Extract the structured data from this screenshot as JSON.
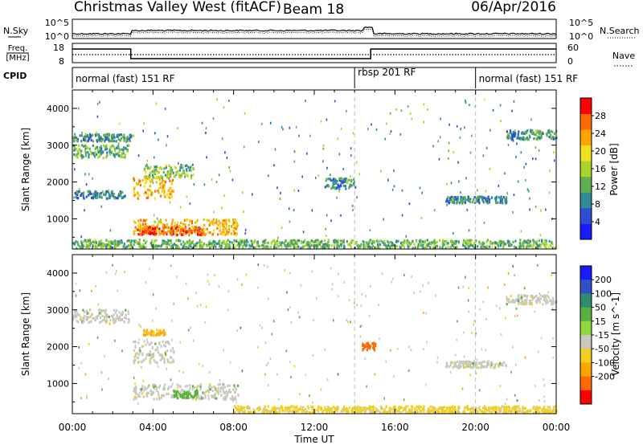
{
  "header": {
    "site": "Christmas Valley West (fitACF)",
    "beam": "Beam 18",
    "date": "06/Apr/2016"
  },
  "side_labels": {
    "nsky": "N.Sky",
    "nsearch": "N.Search",
    "freq_line1": "Freq.",
    "freq_line2": "[MHz]",
    "nave": "Nave",
    "cpid": "CPID"
  },
  "noise_panel": {
    "left_ticks": [
      "10^5",
      "10^0"
    ],
    "right_ticks": [
      "10^5",
      "10^0"
    ]
  },
  "freq_panel": {
    "left_ticks": [
      "18",
      "8"
    ],
    "right_ticks": [
      "60",
      "0"
    ],
    "step_hours": [
      2.9,
      14.8
    ],
    "freq_levels": [
      "high",
      "low",
      "high"
    ],
    "nave_level": "mid"
  },
  "cpid_panel": {
    "segments": [
      {
        "label": "normal (fast) 151 RF",
        "start_hour": 0
      },
      {
        "label": "rbsp 201 RF",
        "start_hour": 14
      },
      {
        "label": "normal (fast) 151 RF",
        "start_hour": 20
      }
    ]
  },
  "x_axis": {
    "label": "Time UT",
    "ticks": [
      "00:00",
      "04:00",
      "08:00",
      "12:00",
      "16:00",
      "20:00",
      "00:00"
    ],
    "range_hours": [
      0,
      24
    ],
    "dashed_hours": [
      14,
      20
    ]
  },
  "chart_data": [
    {
      "type": "heatmap",
      "name": "power",
      "ylabel": "Slant Range [km]",
      "ylim": [
        180,
        4500
      ],
      "yticks": [
        1000,
        2000,
        3000,
        4000
      ],
      "colorbar": {
        "label": "Power [dB]",
        "ticks": [
          "4",
          "8",
          "12",
          "16",
          "20",
          "24",
          "28"
        ],
        "tick_values": [
          4,
          8,
          12,
          16,
          20,
          24,
          28
        ],
        "range": [
          0,
          32
        ],
        "colors": [
          "#1a1aff",
          "#2c4fd6",
          "#2f8c96",
          "#5fb050",
          "#a9d42c",
          "#f0e020",
          "#ffa500",
          "#ff6a00",
          "#ff0000"
        ]
      },
      "features": [
        {
          "t": [
            0.0,
            2.8
          ],
          "r": [
            2650,
            3000
          ],
          "level": 12
        },
        {
          "t": [
            0.0,
            3.0
          ],
          "r": [
            3100,
            3300
          ],
          "level": 10
        },
        {
          "t": [
            0.1,
            2.6
          ],
          "r": [
            1550,
            1750
          ],
          "level": 9
        },
        {
          "t": [
            3.0,
            5.0
          ],
          "r": [
            1550,
            2150
          ],
          "level": 22
        },
        {
          "t": [
            3.5,
            6.0
          ],
          "r": [
            2100,
            2450
          ],
          "level": 14
        },
        {
          "t": [
            3.0,
            8.2
          ],
          "r": [
            560,
            980
          ],
          "level": 22
        },
        {
          "t": [
            3.2,
            6.5
          ],
          "r": [
            560,
            780
          ],
          "level": 27
        },
        {
          "t": [
            12.5,
            14.0
          ],
          "r": [
            1800,
            2100
          ],
          "level": 10
        },
        {
          "t": [
            18.5,
            21.5
          ],
          "r": [
            1420,
            1600
          ],
          "level": 9
        },
        {
          "t": [
            21.5,
            24.0
          ],
          "r": [
            3150,
            3400
          ],
          "level": 10
        },
        {
          "t": [
            0.0,
            24.0
          ],
          "r": [
            200,
            420
          ],
          "level": 13
        }
      ]
    },
    {
      "type": "heatmap",
      "name": "velocity",
      "ylabel": "Slant Range [km]",
      "ylim": [
        180,
        4500
      ],
      "yticks": [
        1000,
        2000,
        3000,
        4000
      ],
      "colorbar": {
        "label": "Velocity [m s^-1]",
        "ticks": [
          "200",
          "100",
          "50",
          "15",
          "-15",
          "-50",
          "-100",
          "-200"
        ],
        "colors": [
          "#1a1aff",
          "#2f50c8",
          "#2f8c6e",
          "#58b040",
          "#90d840",
          "#c8c8c0",
          "#f0d020",
          "#ffa500",
          "#ff6a00",
          "#ff0000"
        ]
      },
      "features": [
        {
          "t": [
            0.0,
            2.8
          ],
          "r": [
            2650,
            3000
          ],
          "level": "ground"
        },
        {
          "t": [
            3.0,
            5.0
          ],
          "r": [
            1550,
            2150
          ],
          "level": "ground"
        },
        {
          "t": [
            3.5,
            4.6
          ],
          "r": [
            2300,
            2450
          ],
          "level": -60
        },
        {
          "t": [
            3.0,
            8.2
          ],
          "r": [
            560,
            980
          ],
          "level": "ground"
        },
        {
          "t": [
            5.0,
            6.2
          ],
          "r": [
            600,
            800
          ],
          "level": 30
        },
        {
          "t": [
            14.3,
            15.0
          ],
          "r": [
            1900,
            2100
          ],
          "level": -150
        },
        {
          "t": [
            18.5,
            21.5
          ],
          "r": [
            1420,
            1600
          ],
          "level": "ground"
        },
        {
          "t": [
            21.5,
            24.0
          ],
          "r": [
            3150,
            3400
          ],
          "level": "ground"
        },
        {
          "t": [
            8.0,
            24.0
          ],
          "r": [
            200,
            380
          ],
          "level": -30
        }
      ]
    }
  ]
}
